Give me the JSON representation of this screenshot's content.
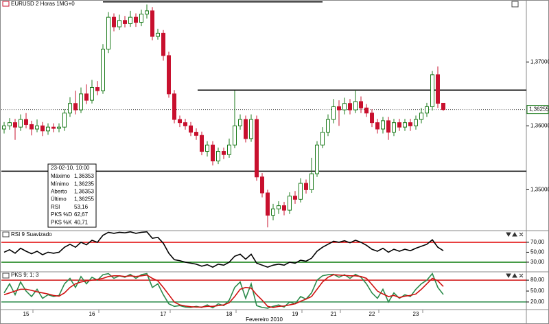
{
  "chart_data": [
    {
      "type": "candlestick",
      "title": "EURUSD 2 Horas 1MG+0",
      "categories": [
        null,
        null,
        null,
        null,
        "15",
        null,
        null,
        null,
        null,
        null,
        null,
        null,
        null,
        null,
        null,
        null,
        "16",
        null,
        null,
        null,
        null,
        null,
        null,
        null,
        null,
        null,
        null,
        null,
        null,
        "17",
        null,
        null,
        null,
        null,
        null,
        null,
        null,
        null,
        null,
        null,
        null,
        "18",
        null,
        null,
        null,
        null,
        null,
        null,
        null,
        null,
        null,
        null,
        null,
        "19",
        null,
        null,
        null,
        null,
        null,
        null,
        "21",
        null,
        null,
        null,
        null,
        null,
        null,
        "22",
        null,
        null,
        null,
        null,
        null,
        null,
        null,
        "23",
        null,
        null,
        null,
        null,
        null
      ],
      "x_label": "Fevereiro 2010",
      "open": [
        1.3595,
        1.36,
        1.3605,
        1.3598,
        1.361,
        1.3602,
        1.3595,
        1.36,
        1.3592,
        1.3598,
        1.3596,
        1.3598,
        1.362,
        1.3635,
        1.3625,
        1.365,
        1.364,
        1.366,
        1.3655,
        1.372,
        1.377,
        1.3755,
        1.3765,
        1.376,
        1.377,
        1.3762,
        1.3775,
        1.378,
        1.374,
        1.3745,
        1.371,
        1.365,
        1.361,
        1.3605,
        1.36,
        1.359,
        1.3585,
        1.356,
        1.357,
        1.3545,
        1.356,
        1.3555,
        1.357,
        1.36,
        1.361,
        1.358,
        1.361,
        1.352,
        1.3495,
        1.346,
        1.347,
        1.3475,
        1.3468,
        1.349,
        1.3485,
        1.351,
        1.35,
        1.3525,
        1.357,
        1.359,
        1.361,
        1.363,
        1.3625,
        1.3635,
        1.3625,
        1.3638,
        1.3628,
        1.362,
        1.3605,
        1.3595,
        1.3608,
        1.359,
        1.3605,
        1.3598,
        1.3605,
        1.36,
        1.361,
        1.362,
        1.363,
        1.368,
        1.36353
      ],
      "high": [
        1.3606,
        1.3612,
        1.3611,
        1.3618,
        1.362,
        1.3608,
        1.361,
        1.3606,
        1.3604,
        1.3604,
        1.3604,
        1.3626,
        1.3645,
        1.3655,
        1.366,
        1.3665,
        1.3672,
        1.367,
        1.3728,
        1.3778,
        1.3776,
        1.3774,
        1.3772,
        1.378,
        1.3776,
        1.3782,
        1.379,
        1.3786,
        1.3752,
        1.375,
        1.3716,
        1.3656,
        1.3616,
        1.3611,
        1.3606,
        1.3596,
        1.3591,
        1.3576,
        1.3576,
        1.3566,
        1.3566,
        1.358,
        1.3655,
        1.3618,
        1.3616,
        1.3618,
        1.3616,
        1.3526,
        1.35,
        1.3478,
        1.3482,
        1.3481,
        1.3496,
        1.3498,
        1.3518,
        1.3516,
        1.355,
        1.3576,
        1.3598,
        1.3618,
        1.3642,
        1.364,
        1.3644,
        1.3642,
        1.3656,
        1.3646,
        1.3634,
        1.3626,
        1.3611,
        1.3614,
        1.3614,
        1.3611,
        1.3611,
        1.3611,
        1.3611,
        1.3616,
        1.3628,
        1.3636,
        1.3686,
        1.3693,
        1.36353
      ],
      "low": [
        1.3588,
        1.3594,
        1.3578,
        1.3592,
        1.3596,
        1.3585,
        1.359,
        1.3584,
        1.3586,
        1.359,
        1.359,
        1.3592,
        1.3614,
        1.3618,
        1.362,
        1.3634,
        1.3635,
        1.3648,
        1.365,
        1.3714,
        1.3748,
        1.375,
        1.3754,
        1.3755,
        1.3755,
        1.3756,
        1.3768,
        1.3734,
        1.3735,
        1.3702,
        1.3644,
        1.3604,
        1.3598,
        1.3594,
        1.3584,
        1.3578,
        1.3554,
        1.3552,
        1.3538,
        1.354,
        1.3548,
        1.355,
        1.3565,
        1.3594,
        1.3574,
        1.3575,
        1.3514,
        1.3488,
        1.3441,
        1.3452,
        1.3462,
        1.346,
        1.3462,
        1.3478,
        1.348,
        1.3494,
        1.3495,
        1.352,
        1.3565,
        1.3584,
        1.3604,
        1.36,
        1.3618,
        1.3618,
        1.362,
        1.362,
        1.3614,
        1.3598,
        1.3588,
        1.3588,
        1.3578,
        1.3584,
        1.3592,
        1.3592,
        1.3592,
        1.3594,
        1.3604,
        1.3614,
        1.3624,
        1.3628,
        1.36235
      ],
      "close": [
        1.36,
        1.3605,
        1.3598,
        1.361,
        1.3602,
        1.3595,
        1.36,
        1.3592,
        1.3598,
        1.3596,
        1.3598,
        1.362,
        1.3635,
        1.3625,
        1.365,
        1.364,
        1.366,
        1.3655,
        1.372,
        1.377,
        1.3755,
        1.3765,
        1.376,
        1.377,
        1.3762,
        1.3775,
        1.378,
        1.374,
        1.3745,
        1.371,
        1.365,
        1.361,
        1.3605,
        1.36,
        1.359,
        1.3585,
        1.356,
        1.357,
        1.3545,
        1.356,
        1.3555,
        1.357,
        1.36,
        1.361,
        1.358,
        1.361,
        1.352,
        1.3495,
        1.346,
        1.347,
        1.3475,
        1.3468,
        1.349,
        1.3485,
        1.351,
        1.35,
        1.3525,
        1.357,
        1.359,
        1.361,
        1.363,
        1.3625,
        1.3635,
        1.3625,
        1.3638,
        1.3628,
        1.362,
        1.3605,
        1.3595,
        1.3608,
        1.359,
        1.3605,
        1.3598,
        1.3605,
        1.36,
        1.361,
        1.362,
        1.363,
        1.368,
        1.36353,
        1.36255
      ],
      "up_color": "#1a7a1a",
      "down_color": "#c8102e",
      "ylim": [
        1.3437,
        1.3797
      ],
      "yticks": [
        {
          "value": 1.35,
          "label": "1,35000"
        },
        {
          "value": 1.36,
          "label": "1,36000"
        },
        {
          "value": 1.37,
          "label": "1,37000"
        }
      ],
      "levels": [
        {
          "value": 1.3794,
          "color": "#000000"
        },
        {
          "value": 1.3656,
          "color": "#000000"
        },
        {
          "value": 1.3529,
          "color": "#000000"
        }
      ],
      "last": {
        "value": 1.36255,
        "label": "1,36255",
        "color": "#1a7a1a"
      },
      "tooltip": {
        "title": "23-02-10, 10:00",
        "rows": [
          {
            "label": "Máximo",
            "value": "1,36353"
          },
          {
            "label": "Mínimo",
            "value": "1,36235"
          },
          {
            "label": "Aberto",
            "value": "1,36353"
          },
          {
            "label": "Último",
            "value": "1,36255"
          },
          {
            "label": "RSI",
            "value": "53,16"
          },
          {
            "label": "PKS %D",
            "value": "62,67",
            "color": "#c8102e"
          },
          {
            "label": "PKS %K",
            "value": "40,71",
            "color": "#2a8a6a"
          }
        ]
      }
    },
    {
      "type": "line",
      "title": "RSI 9 Suavizado",
      "series": [
        {
          "color": "#000000",
          "values": [
            50,
            55,
            48,
            58,
            52,
            47,
            52,
            45,
            50,
            48,
            50,
            60,
            66,
            60,
            70,
            65,
            74,
            70,
            84,
            90,
            88,
            90,
            89,
            91,
            88,
            90,
            91,
            78,
            80,
            68,
            48,
            35,
            33,
            30,
            28,
            26,
            22,
            25,
            20,
            26,
            24,
            30,
            42,
            46,
            36,
            46,
            28,
            24,
            20,
            24,
            26,
            24,
            30,
            28,
            34,
            32,
            38,
            52,
            60,
            66,
            72,
            70,
            73,
            69,
            74,
            70,
            64,
            56,
            52,
            58,
            50,
            56,
            52,
            56,
            53,
            58,
            62,
            66,
            75,
            60,
            53.16
          ]
        }
      ],
      "ylim": [
        12,
        92
      ],
      "yticks": [
        {
          "value": 30,
          "label": "30,00"
        },
        {
          "value": 50,
          "label": "50,00"
        },
        {
          "value": 70,
          "label": "70,00"
        }
      ],
      "levels": [
        {
          "value": 70,
          "color": "#e00000"
        },
        {
          "value": 30,
          "color": "#0a7a0a"
        }
      ]
    },
    {
      "type": "line",
      "title": "PKS 9; 1; 3",
      "series": [
        {
          "color": "#2a8a4a",
          "values": [
            45,
            70,
            40,
            75,
            50,
            35,
            55,
            30,
            40,
            35,
            38,
            70,
            85,
            60,
            90,
            70,
            88,
            80,
            95,
            98,
            85,
            92,
            88,
            96,
            85,
            95,
            98,
            60,
            70,
            40,
            15,
            8,
            10,
            6,
            5,
            8,
            5,
            12,
            4,
            15,
            10,
            25,
            60,
            75,
            30,
            70,
            10,
            5,
            3,
            8,
            12,
            6,
            20,
            15,
            35,
            28,
            45,
            80,
            92,
            95,
            96,
            88,
            95,
            85,
            96,
            88,
            70,
            45,
            30,
            55,
            20,
            45,
            30,
            40,
            35,
            55,
            70,
            80,
            98,
            60,
            40.71
          ]
        },
        {
          "color": "#d01010",
          "values": [
            40,
            45,
            50,
            55,
            55,
            52,
            48,
            45,
            42,
            38,
            36,
            45,
            60,
            70,
            75,
            78,
            80,
            82,
            85,
            90,
            92,
            92,
            90,
            92,
            90,
            92,
            94,
            85,
            78,
            60,
            40,
            20,
            12,
            9,
            7,
            6,
            6,
            8,
            8,
            10,
            12,
            18,
            35,
            55,
            60,
            58,
            40,
            25,
            8,
            5,
            8,
            9,
            12,
            15,
            22,
            28,
            35,
            55,
            75,
            88,
            95,
            94,
            93,
            92,
            92,
            90,
            85,
            68,
            50,
            42,
            35,
            38,
            32,
            36,
            38,
            42,
            55,
            70,
            85,
            78,
            62.67
          ]
        }
      ],
      "ylim": [
        1,
        101
      ],
      "yticks": [
        {
          "value": 20,
          "label": "20,00"
        },
        {
          "value": 50,
          "label": "50,00"
        },
        {
          "value": 80,
          "label": "80,00"
        }
      ],
      "levels": [
        {
          "value": 80,
          "color": "#d01010"
        },
        {
          "value": 20,
          "color": "#2a8a4a"
        }
      ]
    }
  ]
}
